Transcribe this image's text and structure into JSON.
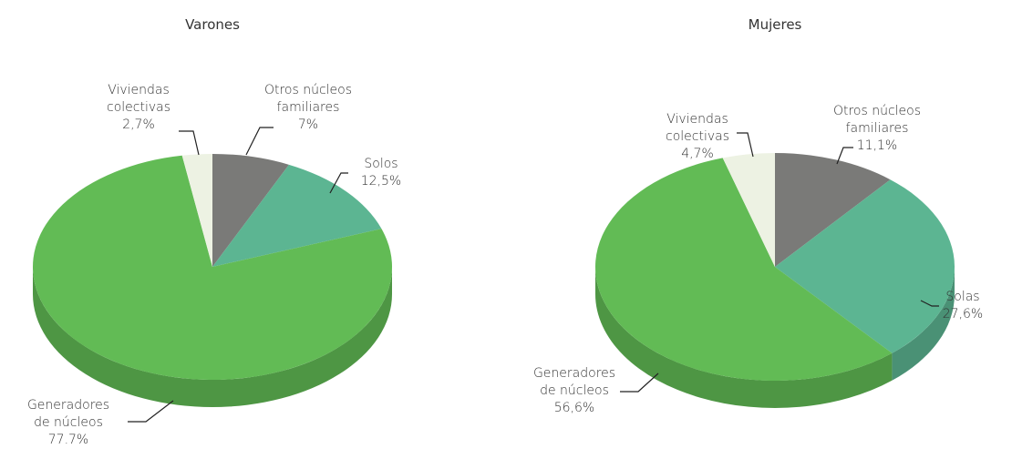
{
  "chart_data": [
    {
      "type": "pie3d",
      "title": "Varones",
      "categories": [
        "Otros núcleos familiares",
        "Solos",
        "Generadores de núcleos",
        "Viviendas colectivas"
      ],
      "values": [
        7,
        12.5,
        77.7,
        2.7
      ],
      "value_labels": [
        "7%",
        "12,5%",
        "77.7%",
        "2,7%"
      ],
      "colors": [
        "#7a7a78",
        "#5cb592",
        "#62bb55",
        "#edf2e3"
      ]
    },
    {
      "type": "pie3d",
      "title": "Mujeres",
      "categories": [
        "Otros núcleos familiares",
        "Solas",
        "Generadores de núcleos",
        "Viviendas colectivas"
      ],
      "values": [
        11.1,
        27.6,
        56.6,
        4.7
      ],
      "value_labels": [
        "11,1%",
        "27,6%",
        "56,6%",
        "4,7%"
      ],
      "colors": [
        "#7a7a78",
        "#5cb592",
        "#62bb55",
        "#edf2e3"
      ]
    }
  ]
}
